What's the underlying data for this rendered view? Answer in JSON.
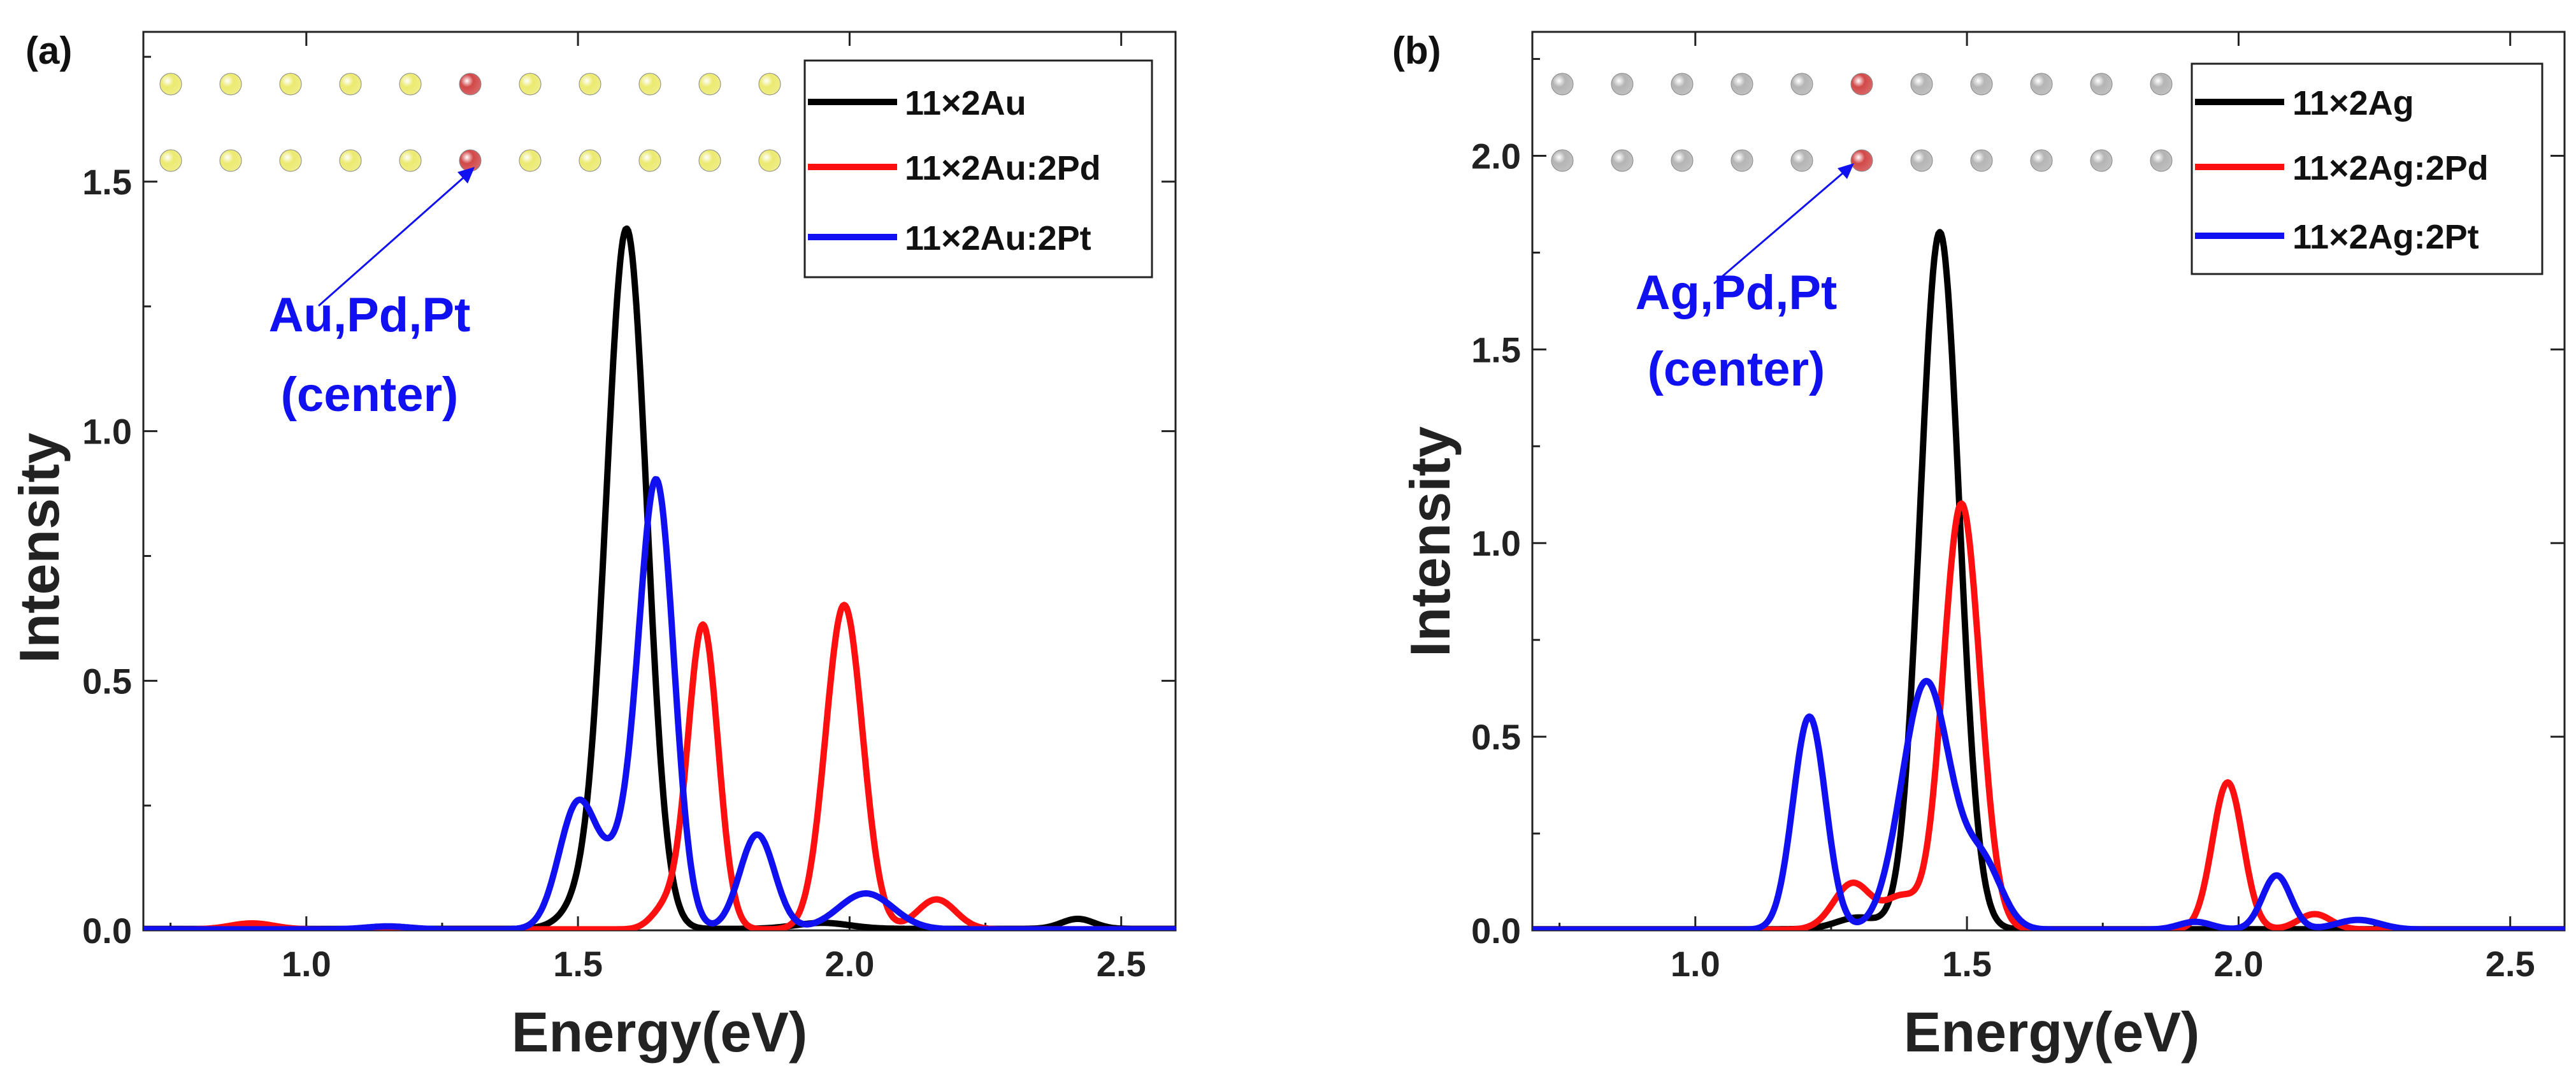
{
  "figure": {
    "colors": {
      "black": "#000000",
      "red": "#ff1010",
      "blue": "#1010f0",
      "gold": "#ecea70",
      "silver": "#b4b4b4",
      "dopant": "#d24848"
    }
  },
  "chart_data": [
    {
      "type": "line",
      "panel_label": "(a)",
      "xlabel": "Energy(eV)",
      "ylabel": "Intensity",
      "xlim": [
        0.7,
        2.6
      ],
      "ylim": [
        0.0,
        1.8
      ],
      "xticks": [
        1.0,
        1.5,
        2.0,
        2.5
      ],
      "xtick_labels": [
        "1.0",
        "1.5",
        "2.0",
        "2.5"
      ],
      "yticks": [
        0.0,
        0.5,
        1.0,
        1.5
      ],
      "ytick_labels": [
        "0.0",
        "0.5",
        "1.0",
        "1.5"
      ],
      "legend_position": "top-right",
      "annotation": {
        "lines": [
          "Au,Pd,Pt",
          "(center)"
        ],
        "color": "#1010f0"
      },
      "atom_chain": {
        "columns": 11,
        "rows": 2,
        "host_color": "#ecea70",
        "dopant_color": "#d24848",
        "dopant_column": 5
      },
      "series": [
        {
          "name": "11×2Au",
          "color": "#000000",
          "peaks": [
            [
              1.59,
              1.39,
              0.037
            ],
            [
              1.52,
              0.06,
              0.04
            ],
            [
              1.95,
              0.012,
              0.05
            ],
            [
              2.42,
              0.02,
              0.03
            ]
          ],
          "baseline": 0.003
        },
        {
          "name": "11×2Au:2Pd",
          "color": "#ff1010",
          "peaks": [
            [
              1.73,
              0.61,
              0.028
            ],
            [
              1.99,
              0.65,
              0.034
            ],
            [
              2.16,
              0.06,
              0.035
            ],
            [
              1.66,
              0.04,
              0.025
            ],
            [
              0.9,
              0.012,
              0.04
            ]
          ],
          "baseline": 0.002
        },
        {
          "name": "11×2Au:2Pt",
          "color": "#1010f0",
          "peaks": [
            [
              1.5,
              0.25,
              0.035
            ],
            [
              1.645,
              0.88,
              0.032
            ],
            [
              1.83,
              0.19,
              0.032
            ],
            [
              2.03,
              0.072,
              0.05
            ],
            [
              1.58,
              0.12,
              0.035
            ],
            [
              1.15,
              0.006,
              0.04
            ]
          ],
          "baseline": 0.002
        }
      ]
    },
    {
      "type": "line",
      "panel_label": "(b)",
      "xlabel": "Energy(eV)",
      "ylabel": "Intensity",
      "xlim": [
        0.7,
        2.6
      ],
      "ylim": [
        0.0,
        2.32
      ],
      "xticks": [
        1.0,
        1.5,
        2.0,
        2.5
      ],
      "xtick_labels": [
        "1.0",
        "1.5",
        "2.0",
        "2.5"
      ],
      "yticks": [
        0.0,
        0.5,
        1.0,
        1.5,
        2.0
      ],
      "ytick_labels": [
        "0.0",
        "0.5",
        "1.0",
        "1.5",
        "2.0"
      ],
      "legend_position": "top-right",
      "annotation": {
        "lines": [
          "Ag,Pd,Pt",
          "(center)"
        ],
        "color": "#1010f0"
      },
      "atom_chain": {
        "columns": 11,
        "rows": 2,
        "host_color": "#b4b4b4",
        "dopant_color": "#d24848",
        "dopant_column": 5
      },
      "series": [
        {
          "name": "11×2Ag",
          "color": "#000000",
          "peaks": [
            [
              1.45,
              1.8,
              0.036
            ],
            [
              1.3,
              0.03,
              0.04
            ]
          ],
          "baseline": 0.003
        },
        {
          "name": "11×2Ag:2Pd",
          "color": "#ff1010",
          "peaks": [
            [
              1.49,
              1.1,
              0.034
            ],
            [
              1.29,
              0.12,
              0.035
            ],
            [
              1.98,
              0.38,
              0.028
            ],
            [
              2.14,
              0.04,
              0.03
            ],
            [
              1.38,
              0.08,
              0.03
            ]
          ],
          "baseline": 0.002
        },
        {
          "name": "11×2Ag:2Pt",
          "color": "#1010f0",
          "peaks": [
            [
              1.21,
              0.55,
              0.03
            ],
            [
              1.425,
              0.64,
              0.045
            ],
            [
              1.53,
              0.16,
              0.035
            ],
            [
              2.07,
              0.14,
              0.026
            ],
            [
              2.22,
              0.025,
              0.04
            ],
            [
              1.92,
              0.02,
              0.03
            ]
          ],
          "baseline": 0.002
        }
      ]
    }
  ]
}
